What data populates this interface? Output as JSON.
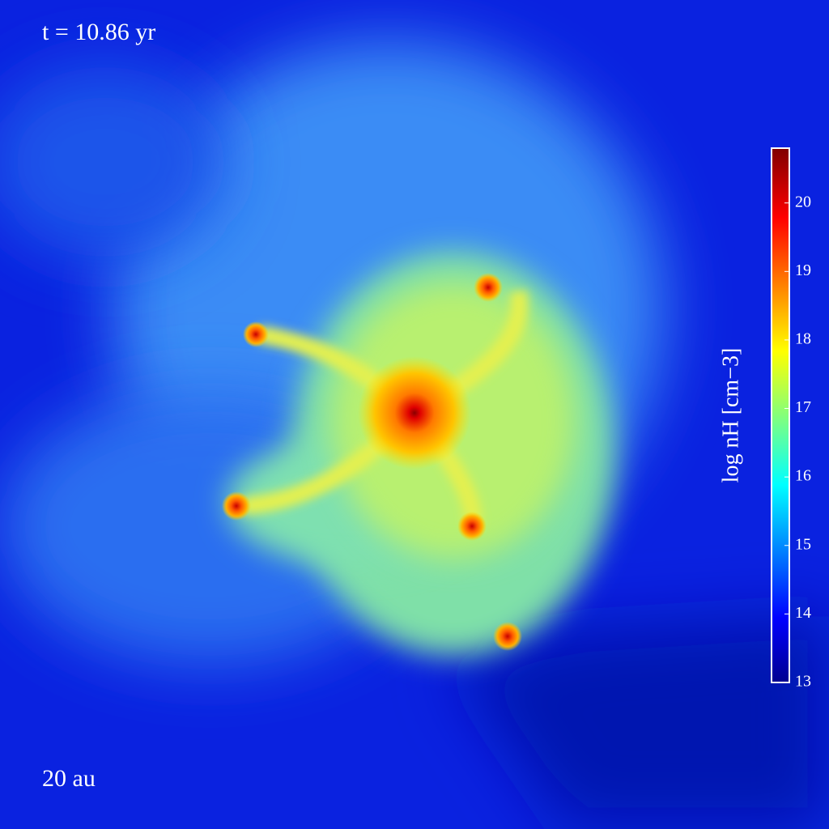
{
  "annotations": {
    "time": "t = 10.86 yr",
    "scale": "20 au"
  },
  "colorbar": {
    "label": "log nH [cm−3]",
    "lim": [
      13,
      20.8
    ],
    "ticks": [
      13,
      14,
      15,
      16,
      17,
      18,
      19,
      20
    ]
  }
}
